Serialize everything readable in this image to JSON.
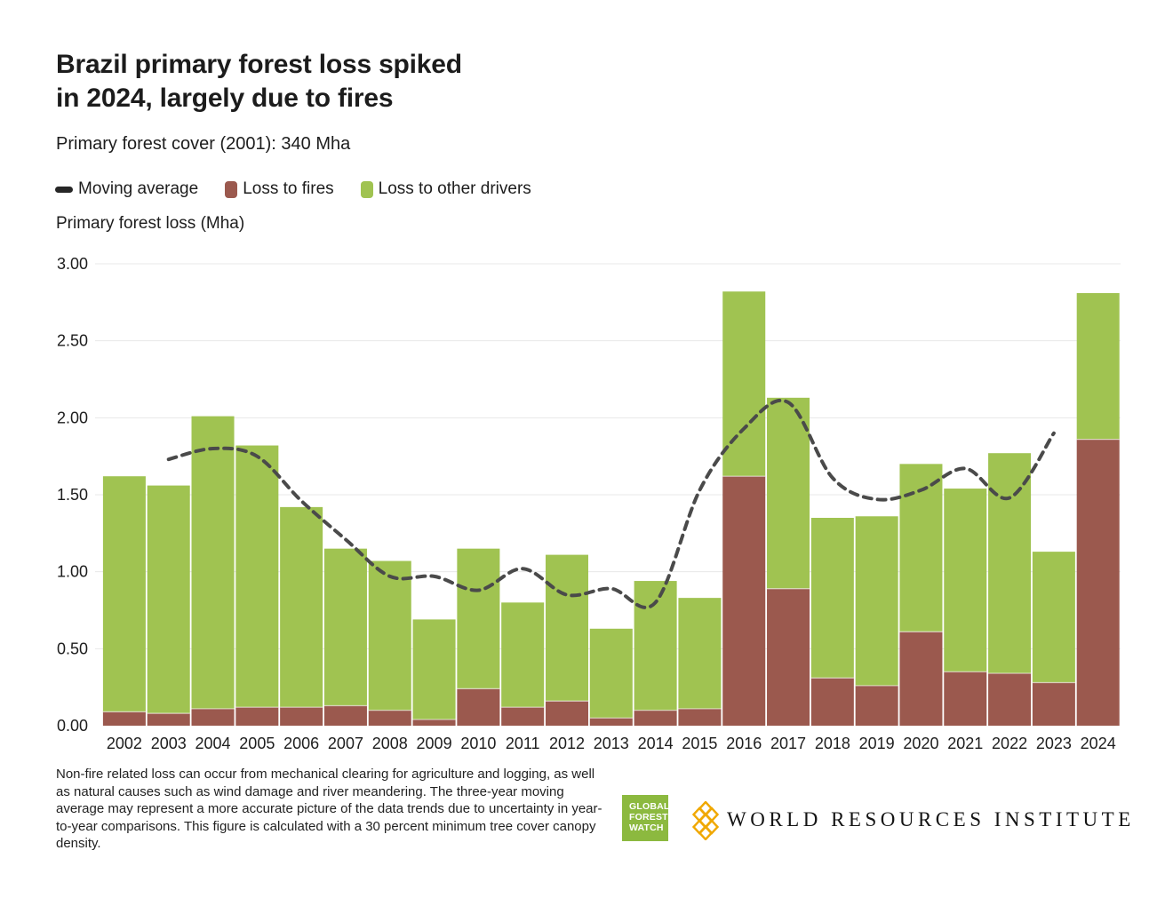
{
  "header": {
    "title_line1": "Brazil primary forest loss spiked",
    "title_line2": "in 2024, largely due to fires",
    "subtitle": "Primary forest cover (2001): 340 Mha"
  },
  "legend": {
    "moving_average_label": "Moving average",
    "fires_label": "Loss to fires",
    "other_label": "Loss to other drivers"
  },
  "axis_title": "Primary forest loss (Mha)",
  "footnote": "Non-fire related loss can occur from mechanical clearing for agriculture and logging, as well as natural causes such as wind damage and river meandering. The three-year moving average may represent a more accurate picture of the data trends due to uncertainty in year-to-year comparisons. This figure is calculated with a 30 percent minimum tree cover canopy density.",
  "logos": {
    "gfw_lines": [
      "GLOBAL",
      "FOREST",
      "WATCH"
    ],
    "wri_text": "WORLD RESOURCES INSTITUTE"
  },
  "colors": {
    "fires": "#9B594E",
    "other": "#A0C351",
    "moving_average": "#4a4a4a",
    "grid": "#e8e8e8",
    "text": "#1d1d1d",
    "gfw_green": "#8CB93F",
    "wri_orange": "#F0A800"
  },
  "chart_data": {
    "type": "bar",
    "stacked": true,
    "title": "Brazil primary forest loss spiked in 2024, largely due to fires",
    "subtitle": "Primary forest cover (2001): 340 Mha",
    "ylabel": "Primary forest loss (Mha)",
    "xlabel": "",
    "ylim": [
      0,
      3.0
    ],
    "yticks": [
      0,
      0.5,
      1.0,
      1.5,
      2.0,
      2.5,
      3.0
    ],
    "ytick_labels": [
      "0.00",
      "0.50",
      "1.00",
      "1.50",
      "2.00",
      "2.50",
      "3.00"
    ],
    "grid": true,
    "legend_position": "top",
    "categories": [
      2002,
      2003,
      2004,
      2005,
      2006,
      2007,
      2008,
      2009,
      2010,
      2011,
      2012,
      2013,
      2014,
      2015,
      2016,
      2017,
      2018,
      2019,
      2020,
      2021,
      2022,
      2023,
      2024
    ],
    "series": [
      {
        "name": "Loss to fires",
        "color": "#9B594E",
        "values": [
          0.09,
          0.08,
          0.11,
          0.12,
          0.12,
          0.13,
          0.1,
          0.04,
          0.24,
          0.12,
          0.16,
          0.05,
          0.1,
          0.11,
          1.62,
          0.89,
          0.31,
          0.26,
          0.61,
          0.35,
          0.34,
          0.28,
          1.86
        ]
      },
      {
        "name": "Loss to other drivers",
        "color": "#A0C351",
        "values": [
          1.53,
          1.48,
          1.9,
          1.7,
          1.3,
          1.02,
          0.97,
          0.65,
          0.91,
          0.68,
          0.95,
          0.58,
          0.84,
          0.72,
          1.2,
          1.24,
          1.04,
          1.1,
          1.09,
          1.19,
          1.43,
          0.85,
          0.95
        ]
      }
    ],
    "totals": [
      1.62,
      1.56,
      2.01,
      1.82,
      1.42,
      1.15,
      1.07,
      0.69,
      1.15,
      0.8,
      1.11,
      0.63,
      0.94,
      0.83,
      2.82,
      2.13,
      1.35,
      1.36,
      1.7,
      1.54,
      1.77,
      1.13,
      2.81
    ],
    "line_series": {
      "name": "Moving average",
      "style": "dashed",
      "x": [
        2003,
        2004,
        2005,
        2006,
        2007,
        2008,
        2009,
        2010,
        2011,
        2012,
        2013,
        2014,
        2015,
        2016,
        2017,
        2018,
        2019,
        2020,
        2021,
        2022,
        2023
      ],
      "values": [
        1.73,
        1.8,
        1.75,
        1.46,
        1.21,
        0.97,
        0.97,
        0.88,
        1.02,
        0.85,
        0.89,
        0.8,
        1.53,
        1.93,
        2.1,
        1.61,
        1.47,
        1.53,
        1.67,
        1.48,
        1.9
      ]
    }
  }
}
